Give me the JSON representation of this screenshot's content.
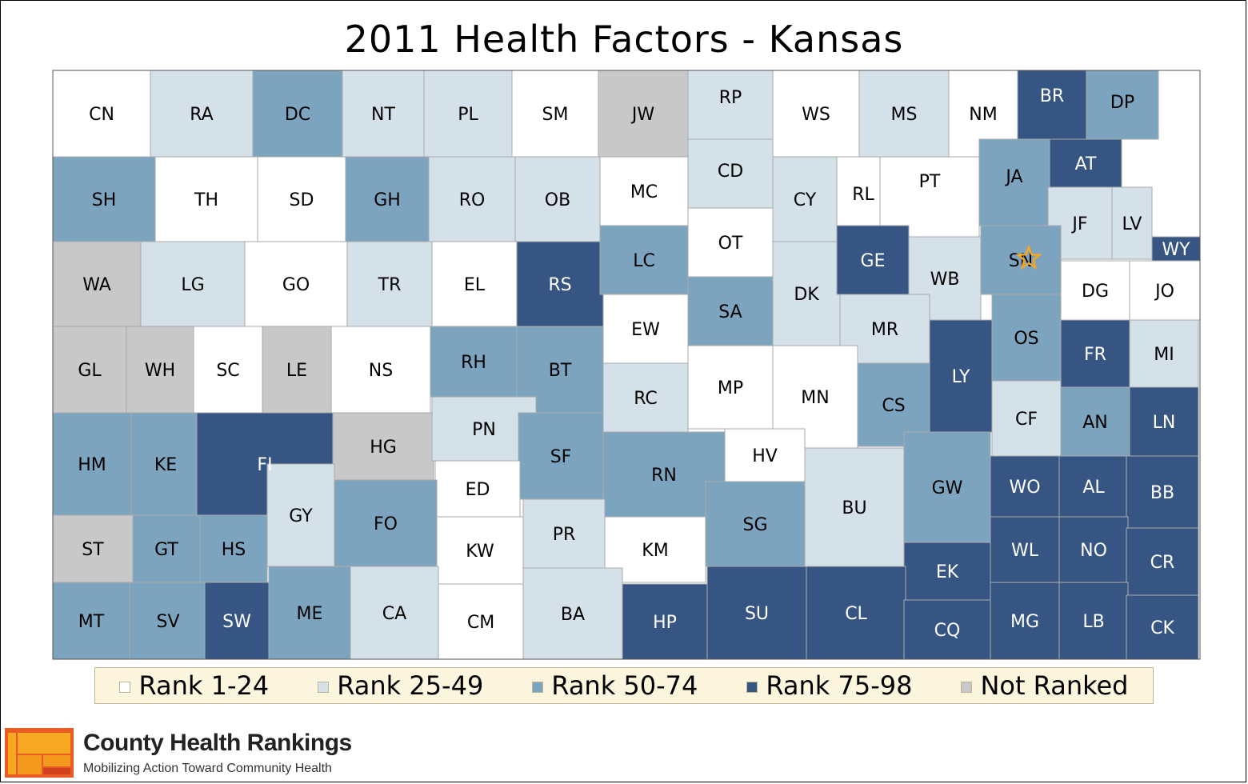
{
  "title": "2011 Health Factors - Kansas",
  "colors": {
    "rank_1_24": "#ffffff",
    "rank_25_49": "#d4e1e9",
    "rank_50_74": "#7ca4bf",
    "rank_75_98": "#365583",
    "not_ranked": "#c8c8c8",
    "border": "#aaaaaa",
    "star": "#f5a623"
  },
  "legend": [
    {
      "label": "Rank 1-24",
      "color": "#ffffff"
    },
    {
      "label": "Rank 25-49",
      "color": "#d4e1e9"
    },
    {
      "label": "Rank 50-74",
      "color": "#7ca4bf"
    },
    {
      "label": "Rank 75-98",
      "color": "#365583"
    },
    {
      "label": "Not Ranked",
      "color": "#c8c8c8"
    }
  ],
  "brand": {
    "name": "County Health Rankings",
    "tagline": "Mobilizing Action Toward Community Health"
  },
  "counties": [
    {
      "abbr": "CN",
      "rank": "1-24"
    },
    {
      "abbr": "RA",
      "rank": "25-49"
    },
    {
      "abbr": "DC",
      "rank": "50-74"
    },
    {
      "abbr": "NT",
      "rank": "25-49"
    },
    {
      "abbr": "PL",
      "rank": "25-49"
    },
    {
      "abbr": "SM",
      "rank": "1-24"
    },
    {
      "abbr": "JW",
      "rank": "Not Ranked"
    },
    {
      "abbr": "RP",
      "rank": "25-49"
    },
    {
      "abbr": "WS",
      "rank": "1-24"
    },
    {
      "abbr": "MS",
      "rank": "25-49"
    },
    {
      "abbr": "NM",
      "rank": "1-24"
    },
    {
      "abbr": "BR",
      "rank": "75-98"
    },
    {
      "abbr": "DP",
      "rank": "50-74"
    },
    {
      "abbr": "SH",
      "rank": "50-74"
    },
    {
      "abbr": "TH",
      "rank": "1-24"
    },
    {
      "abbr": "SD",
      "rank": "1-24"
    },
    {
      "abbr": "GH",
      "rank": "50-74"
    },
    {
      "abbr": "RO",
      "rank": "25-49"
    },
    {
      "abbr": "OB",
      "rank": "25-49"
    },
    {
      "abbr": "MC",
      "rank": "1-24"
    },
    {
      "abbr": "CD",
      "rank": "25-49"
    },
    {
      "abbr": "CY",
      "rank": "25-49"
    },
    {
      "abbr": "RL",
      "rank": "1-24"
    },
    {
      "abbr": "PT",
      "rank": "1-24"
    },
    {
      "abbr": "JA",
      "rank": "50-74"
    },
    {
      "abbr": "AT",
      "rank": "75-98"
    },
    {
      "abbr": "JF",
      "rank": "25-49"
    },
    {
      "abbr": "LV",
      "rank": "25-49"
    },
    {
      "abbr": "WY",
      "rank": "75-98"
    },
    {
      "abbr": "WA",
      "rank": "Not Ranked"
    },
    {
      "abbr": "LG",
      "rank": "25-49"
    },
    {
      "abbr": "GO",
      "rank": "1-24"
    },
    {
      "abbr": "TR",
      "rank": "25-49"
    },
    {
      "abbr": "EL",
      "rank": "1-24"
    },
    {
      "abbr": "RS",
      "rank": "75-98"
    },
    {
      "abbr": "LC",
      "rank": "50-74"
    },
    {
      "abbr": "OT",
      "rank": "1-24"
    },
    {
      "abbr": "DK",
      "rank": "25-49"
    },
    {
      "abbr": "GE",
      "rank": "75-98"
    },
    {
      "abbr": "WB",
      "rank": "25-49"
    },
    {
      "abbr": "SN",
      "rank": "50-74"
    },
    {
      "abbr": "DG",
      "rank": "1-24"
    },
    {
      "abbr": "JO",
      "rank": "1-24"
    },
    {
      "abbr": "GL",
      "rank": "Not Ranked"
    },
    {
      "abbr": "WH",
      "rank": "Not Ranked"
    },
    {
      "abbr": "SC",
      "rank": "1-24"
    },
    {
      "abbr": "LE",
      "rank": "Not Ranked"
    },
    {
      "abbr": "NS",
      "rank": "1-24"
    },
    {
      "abbr": "RH",
      "rank": "50-74"
    },
    {
      "abbr": "BT",
      "rank": "50-74"
    },
    {
      "abbr": "EW",
      "rank": "1-24"
    },
    {
      "abbr": "SA",
      "rank": "50-74"
    },
    {
      "abbr": "MR",
      "rank": "25-49"
    },
    {
      "abbr": "LY",
      "rank": "75-98"
    },
    {
      "abbr": "OS",
      "rank": "50-74"
    },
    {
      "abbr": "FR",
      "rank": "75-98"
    },
    {
      "abbr": "MI",
      "rank": "25-49"
    },
    {
      "abbr": "HM",
      "rank": "50-74"
    },
    {
      "abbr": "KE",
      "rank": "50-74"
    },
    {
      "abbr": "FI",
      "rank": "75-98"
    },
    {
      "abbr": "HG",
      "rank": "Not Ranked"
    },
    {
      "abbr": "PN",
      "rank": "25-49"
    },
    {
      "abbr": "SF",
      "rank": "50-74"
    },
    {
      "abbr": "RC",
      "rank": "25-49"
    },
    {
      "abbr": "MP",
      "rank": "1-24"
    },
    {
      "abbr": "MN",
      "rank": "1-24"
    },
    {
      "abbr": "CS",
      "rank": "50-74"
    },
    {
      "abbr": "CF",
      "rank": "25-49"
    },
    {
      "abbr": "AN",
      "rank": "50-74"
    },
    {
      "abbr": "LN",
      "rank": "75-98"
    },
    {
      "abbr": "GY",
      "rank": "25-49"
    },
    {
      "abbr": "ED",
      "rank": "1-24"
    },
    {
      "abbr": "RN",
      "rank": "50-74"
    },
    {
      "abbr": "HV",
      "rank": "1-24"
    },
    {
      "abbr": "BU",
      "rank": "25-49"
    },
    {
      "abbr": "GW",
      "rank": "50-74"
    },
    {
      "abbr": "WO",
      "rank": "75-98"
    },
    {
      "abbr": "AL",
      "rank": "75-98"
    },
    {
      "abbr": "BB",
      "rank": "75-98"
    },
    {
      "abbr": "ST",
      "rank": "Not Ranked"
    },
    {
      "abbr": "GT",
      "rank": "50-74"
    },
    {
      "abbr": "HS",
      "rank": "50-74"
    },
    {
      "abbr": "FO",
      "rank": "50-74"
    },
    {
      "abbr": "KW",
      "rank": "1-24"
    },
    {
      "abbr": "PR",
      "rank": "25-49"
    },
    {
      "abbr": "KM",
      "rank": "1-24"
    },
    {
      "abbr": "SG",
      "rank": "50-74"
    },
    {
      "abbr": "EK",
      "rank": "75-98"
    },
    {
      "abbr": "WL",
      "rank": "75-98"
    },
    {
      "abbr": "NO",
      "rank": "75-98"
    },
    {
      "abbr": "CR",
      "rank": "75-98"
    },
    {
      "abbr": "MT",
      "rank": "50-74"
    },
    {
      "abbr": "SV",
      "rank": "50-74"
    },
    {
      "abbr": "SW",
      "rank": "75-98"
    },
    {
      "abbr": "ME",
      "rank": "50-74"
    },
    {
      "abbr": "CA",
      "rank": "25-49"
    },
    {
      "abbr": "CM",
      "rank": "1-24"
    },
    {
      "abbr": "BA",
      "rank": "25-49"
    },
    {
      "abbr": "HP",
      "rank": "75-98"
    },
    {
      "abbr": "SU",
      "rank": "75-98"
    },
    {
      "abbr": "CL",
      "rank": "75-98"
    },
    {
      "abbr": "CQ",
      "rank": "75-98"
    },
    {
      "abbr": "MG",
      "rank": "75-98"
    },
    {
      "abbr": "LB",
      "rank": "75-98"
    },
    {
      "abbr": "CK",
      "rank": "75-98"
    }
  ],
  "star_marker": {
    "county": "SN",
    "icon": "star-icon"
  }
}
